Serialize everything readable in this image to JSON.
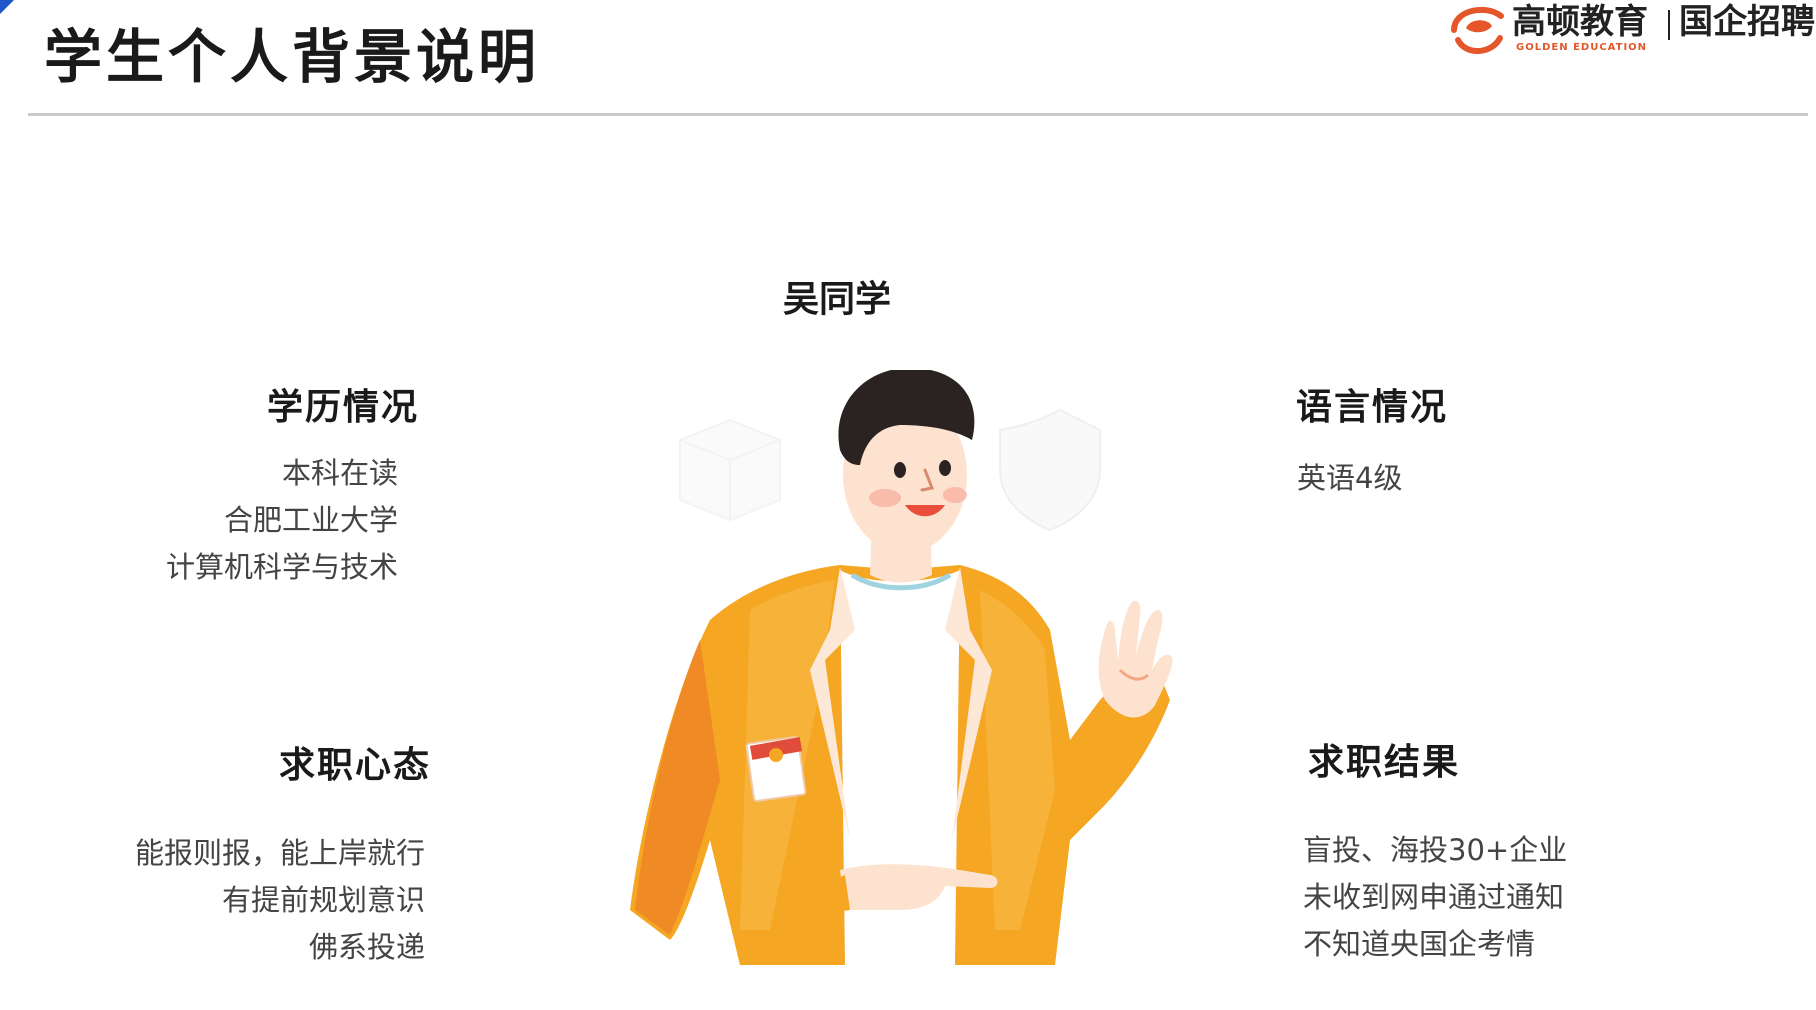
{
  "header": {
    "title": "学生个人背景说明"
  },
  "brand": {
    "name": "高顿教育",
    "name_en": "GOLDEN EDUCATION",
    "tag": "国企招聘",
    "accent_color": "#e5562a"
  },
  "student": {
    "name": "吴同学"
  },
  "sections": {
    "education": {
      "title": "学历情况",
      "lines": [
        "本科在读",
        "合肥工业大学",
        "计算机科学与技术"
      ]
    },
    "language": {
      "title": "语言情况",
      "lines": [
        "英语4级"
      ]
    },
    "mindset": {
      "title": "求职心态",
      "lines": [
        "能报则报，能上岸就行",
        "有提前规划意识",
        "佛系投递"
      ]
    },
    "result": {
      "title": "求职结果",
      "lines": [
        "盲投、海投30+企业",
        "未收到网申通过通知",
        "不知道央国企考情"
      ]
    }
  },
  "illustration": {
    "icon": "cartoon-student-waving",
    "jacket_color": "#f5a623"
  }
}
